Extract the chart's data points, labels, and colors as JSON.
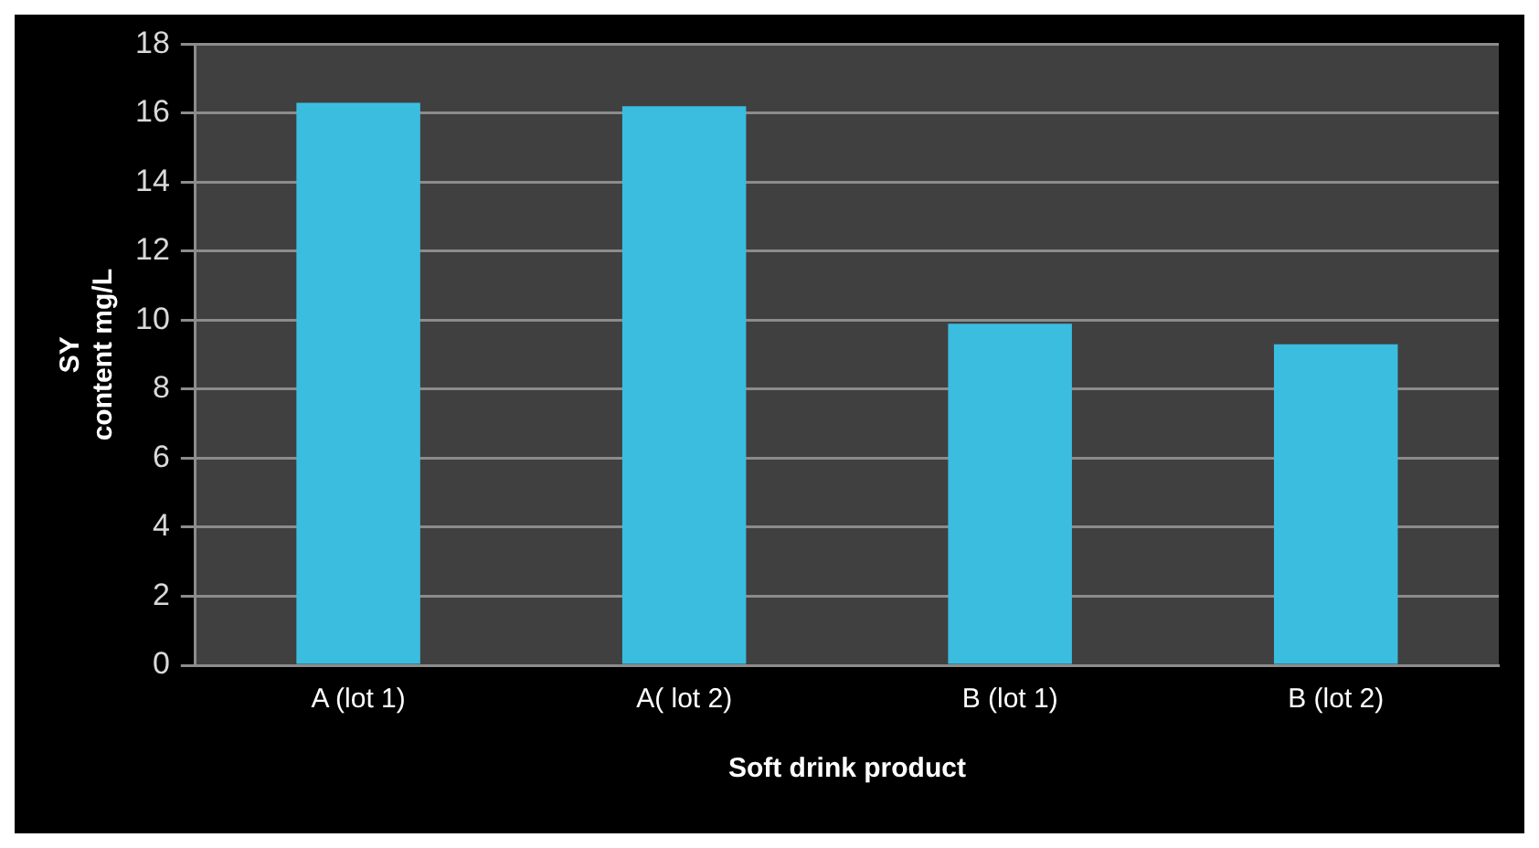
{
  "chart_data": {
    "type": "bar",
    "xlabel": "Soft drink product",
    "ylabel": "SY\ncontent mg/L",
    "categories": [
      "A (lot 1)",
      "A( lot 2)",
      "B (lot 1)",
      "B (lot 2)"
    ],
    "values": [
      16.3,
      16.2,
      9.9,
      9.3
    ],
    "color": "#3bbde0",
    "ylim": [
      0,
      18
    ],
    "yticks": [
      0,
      2,
      4,
      6,
      8,
      10,
      12,
      14,
      16,
      18
    ],
    "grid": "y",
    "legend": false
  }
}
